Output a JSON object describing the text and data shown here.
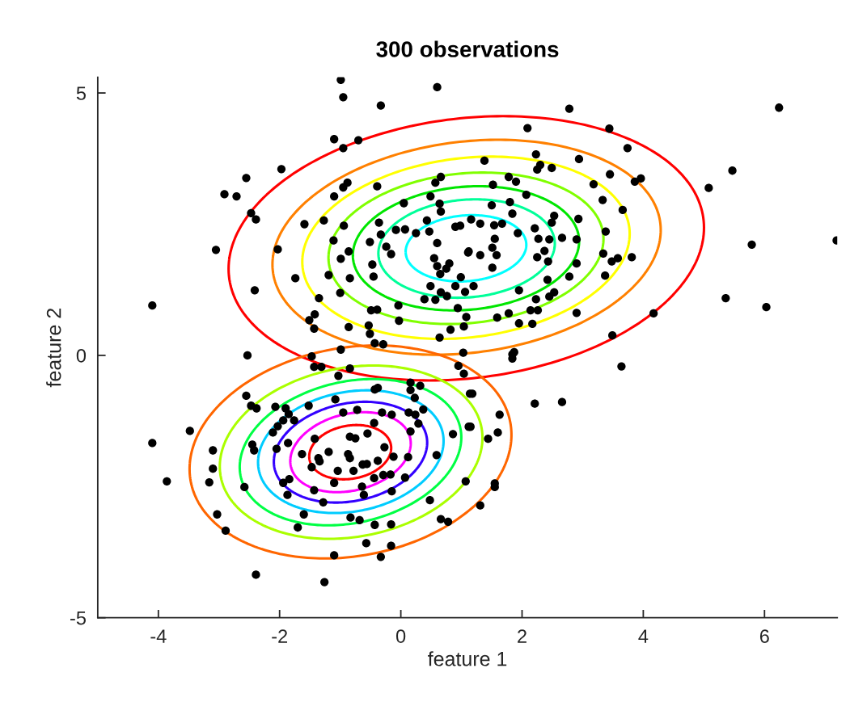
{
  "chart_data": {
    "type": "scatter",
    "title": "300 observations",
    "xlabel": "feature 1",
    "ylabel": "feature 2",
    "xlim": [
      -5,
      7.2
    ],
    "ylim": [
      -5,
      5.3
    ],
    "xticks": [
      -4,
      -2,
      0,
      2,
      4,
      6
    ],
    "yticks": [
      -5,
      0,
      5
    ],
    "grid": false,
    "legend": false,
    "marker": "circle",
    "series": [
      {
        "color": "#000000",
        "x": [
          -0.99,
          -0.95,
          -0.33,
          0.6,
          2.78,
          6.24,
          2.09,
          3.44,
          3.74,
          -1.1,
          -0.95,
          -0.7,
          -1.97,
          -2.55,
          -2.91,
          -2.71,
          -2.47,
          -2.39,
          -3.05,
          -2.03,
          -2.41,
          -4.1,
          5.08,
          5.47,
          5.79,
          7.19,
          5.36,
          6.03,
          4.17,
          3.49,
          3.64,
          2.53,
          -0.39,
          -0.88,
          -0.95,
          -1.1,
          -1.59,
          -1.27,
          -0.94,
          0.05,
          0.49,
          0.66,
          0.57,
          0.64,
          0.66,
          0.43,
          -0.08,
          0.07,
          0.25,
          0.47,
          -0.36,
          -0.33,
          -0.51,
          -0.24,
          -0.16,
          -1.11,
          -0.86,
          -0.99,
          -0.47,
          -0.45,
          -1.74,
          -1.19,
          -0.84,
          -1.0,
          -1.35,
          -1.42,
          -1.51,
          -1.43,
          -0.86,
          -0.49,
          -0.39,
          -0.53,
          -0.51,
          -0.43,
          -0.29,
          -0.04,
          -0.03,
          -2.53,
          -0.99,
          -1.47,
          0.55,
          0.6,
          0.75,
          0.65,
          0.8,
          0.6,
          0.9,
          0.98,
          1.11,
          0.99,
          0.9,
          1.06,
          0.49,
          0.66,
          0.76,
          0.39,
          0.57,
          0.94,
          1.08,
          1.04,
          0.82,
          0.64,
          1.03,
          2.23,
          2.94,
          1.38,
          2.25,
          2.3,
          2.49,
          3.45,
          3.96,
          3.86,
          1.78,
          1.9,
          1.52,
          3.18,
          2.07,
          1.5,
          1.8,
          3.33,
          3.66,
          1.84,
          2.53,
          2.49,
          2.93,
          1.16,
          1.31,
          1.54,
          1.67,
          2.21,
          3.38,
          1.93,
          1.55,
          2.27,
          2.45,
          2.66,
          2.9,
          1.51,
          1.12,
          1.31,
          1.58,
          2.37,
          2.25,
          2.43,
          2.9,
          3.34,
          3.48,
          3.58,
          3.81,
          1.51,
          3.37,
          2.78,
          2.42,
          1.2,
          1.95,
          2.45,
          2.23,
          2.14,
          2.26,
          1.78,
          1.59,
          1.95,
          2.17,
          2.9,
          1.84,
          -1.43,
          -1.31,
          -0.84,
          -1.03,
          0.95,
          1.04,
          0.16,
          0.32,
          0.16,
          -0.43,
          -0.38,
          0.23,
          1.14,
          -2.55,
          -2.47,
          -2.38,
          -2.07,
          -1.9,
          -1.85,
          -1.76,
          -1.94,
          -2.03,
          -2.11,
          -1.52,
          -1.08,
          -0.95,
          -0.72,
          -0.31,
          -0.15,
          0.13,
          0.24,
          0.37,
          0.29,
          -0.44,
          -0.55,
          0.16,
          0.86,
          1.12,
          -3.48,
          -4.1,
          -3.1,
          -3.1,
          -3.16,
          -3.86,
          -2.45,
          -2.42,
          -1.86,
          -2.05,
          -1.42,
          -1.63,
          -1.19,
          -1.36,
          -1.34,
          -0.87,
          -0.84,
          -0.84,
          -0.75,
          -0.27,
          -0.12,
          -0.38,
          0.12,
          0.59,
          -1.47,
          -1.04,
          -0.78,
          -0.63,
          -0.56,
          -0.44,
          -0.29,
          -0.17,
          0.07,
          1.07,
          -1.84,
          -1.94,
          -1.1,
          -0.64,
          -0.61,
          -0.15,
          -1.43,
          -1.87,
          -2.58,
          -1.28,
          0.48,
          -1.6,
          -0.83,
          -0.68,
          -0.43,
          -0.16,
          0.66,
          0.78,
          -1.7,
          -3.03,
          -2.89,
          -0.57,
          -0.16,
          -1.1,
          -0.33,
          -2.39,
          -1.26,
          1.87,
          1.84,
          1.18,
          2.21,
          2.66,
          1.63,
          1.15,
          1.6,
          1.44,
          1.55,
          1.55,
          1.31
        ],
        "values": [
          5.25,
          4.92,
          4.76,
          5.11,
          4.7,
          4.72,
          4.33,
          4.32,
          3.95,
          4.12,
          3.95,
          4.1,
          3.55,
          3.38,
          3.07,
          3.03,
          2.71,
          2.59,
          2.01,
          2.02,
          1.24,
          0.95,
          3.19,
          3.52,
          2.11,
          2.19,
          1.09,
          0.92,
          0.8,
          0.38,
          -0.21,
          1.2,
          3.22,
          3.29,
          3.2,
          3.03,
          2.5,
          2.57,
          2.47,
          2.9,
          3.03,
          3.4,
          3.29,
          2.89,
          2.74,
          2.57,
          2.39,
          2.4,
          2.33,
          2.36,
          2.53,
          2.3,
          2.16,
          2.07,
          1.93,
          2.19,
          1.98,
          1.84,
          1.73,
          1.5,
          1.47,
          1.53,
          1.47,
          1.19,
          1.09,
          0.78,
          0.67,
          0.51,
          0.54,
          0.86,
          0.87,
          0.57,
          0.41,
          0.23,
          0.21,
          0.95,
          0.66,
          0.0,
          0.11,
          -0.02,
          1.85,
          1.7,
          1.65,
          1.55,
          1.75,
          2.14,
          2.45,
          2.47,
          1.96,
          1.49,
          1.32,
          1.21,
          1.32,
          1.2,
          1.13,
          1.07,
          1.06,
          0.9,
          0.73,
          0.55,
          0.49,
          0.34,
          0.05,
          3.83,
          3.74,
          3.71,
          3.54,
          3.63,
          3.57,
          3.45,
          3.37,
          3.31,
          3.4,
          3.31,
          3.25,
          3.26,
          3.06,
          2.86,
          2.92,
          2.96,
          2.77,
          2.7,
          2.66,
          2.53,
          2.6,
          2.59,
          2.51,
          2.48,
          2.51,
          2.42,
          2.36,
          2.33,
          2.22,
          2.22,
          2.21,
          2.24,
          2.21,
          2.05,
          1.98,
          1.91,
          1.91,
          1.99,
          1.87,
          1.79,
          1.75,
          1.94,
          1.79,
          1.85,
          1.87,
          1.67,
          1.52,
          1.5,
          1.44,
          1.32,
          1.24,
          1.12,
          1.07,
          0.86,
          0.86,
          0.8,
          0.72,
          0.61,
          0.6,
          0.81,
          0.02,
          -0.22,
          -0.22,
          -0.25,
          -0.39,
          -0.2,
          -0.35,
          -0.52,
          -0.58,
          -0.66,
          -0.65,
          -0.62,
          -0.81,
          -0.73,
          -0.77,
          -0.96,
          -1.01,
          -0.98,
          -1.01,
          -1.12,
          -1.24,
          -1.24,
          -1.35,
          -1.47,
          -0.96,
          -0.84,
          -1.09,
          -1.04,
          -1.09,
          -1.13,
          -1.09,
          -1.13,
          -1.03,
          -1.3,
          -1.29,
          -1.49,
          -1.45,
          -1.5,
          -1.36,
          -1.44,
          -1.67,
          -1.81,
          -2.16,
          -2.42,
          -2.4,
          -1.7,
          -1.81,
          -1.67,
          -1.78,
          -1.59,
          -1.88,
          -1.84,
          -1.96,
          -2.02,
          -1.88,
          -1.96,
          -1.55,
          -1.58,
          -1.75,
          -1.93,
          -2.01,
          -1.94,
          -1.9,
          -2.13,
          -2.2,
          -2.2,
          -2.08,
          -2.07,
          -2.34,
          -2.28,
          -2.27,
          -2.33,
          -2.4,
          -2.36,
          -2.43,
          -2.43,
          -2.5,
          -2.66,
          -2.59,
          -2.57,
          -2.66,
          -2.51,
          -2.8,
          -2.76,
          -3.03,
          -3.09,
          -3.14,
          -3.23,
          -3.22,
          -3.12,
          -3.17,
          -3.28,
          -3.03,
          -3.34,
          -3.58,
          -3.63,
          -3.81,
          -3.84,
          -4.18,
          -4.32,
          0.06,
          -0.06,
          -0.73,
          -0.92,
          -0.89,
          -1.13,
          -1.36,
          -1.47,
          -1.59,
          -2.44,
          -2.51,
          -2.86
        ]
      }
    ]
  }
}
